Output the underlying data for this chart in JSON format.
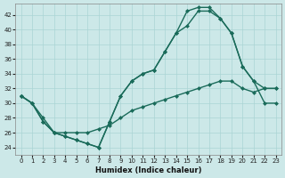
{
  "xlabel": "Humidex (Indice chaleur)",
  "ylabel": "",
  "bg_color": "#cce8e8",
  "line_color": "#1a6b5a",
  "grid_color": "#aad4d4",
  "xlim": [
    -0.5,
    23.5
  ],
  "ylim": [
    23,
    43.5
  ],
  "yticks": [
    24,
    26,
    28,
    30,
    32,
    34,
    36,
    38,
    40,
    42
  ],
  "xticks": [
    0,
    1,
    2,
    3,
    4,
    5,
    6,
    7,
    8,
    9,
    10,
    11,
    12,
    13,
    14,
    15,
    16,
    17,
    18,
    19,
    20,
    21,
    22,
    23
  ],
  "line1_x": [
    0,
    1,
    2,
    3,
    4,
    5,
    6,
    7,
    8,
    9,
    10,
    11,
    12,
    13,
    14,
    15,
    16,
    17,
    18,
    19,
    20,
    21,
    22,
    23
  ],
  "line1_y": [
    31,
    30,
    27.5,
    26,
    25.5,
    25,
    24.5,
    24,
    27.5,
    31,
    33,
    34,
    34.5,
    37,
    39.5,
    40.5,
    42.5,
    42.5,
    41.5,
    39.5,
    35,
    33,
    30,
    30
  ],
  "line2_x": [
    0,
    1,
    2,
    3,
    4,
    5,
    6,
    7,
    8,
    9,
    10,
    11,
    12,
    13,
    14,
    15,
    16,
    17,
    18,
    19,
    20,
    21,
    22,
    23
  ],
  "line2_y": [
    31,
    30,
    27.5,
    26,
    25.5,
    25,
    24.5,
    24,
    27.5,
    31,
    33,
    34,
    34.5,
    37,
    39.5,
    42.5,
    43,
    43,
    41.5,
    39.5,
    35,
    33,
    32,
    32
  ],
  "line3_x": [
    0,
    1,
    2,
    3,
    4,
    5,
    6,
    7,
    8,
    9,
    10,
    11,
    12,
    13,
    14,
    15,
    16,
    17,
    18,
    19,
    20,
    21,
    22,
    23
  ],
  "line3_y": [
    31,
    30,
    28,
    26,
    26,
    26,
    26,
    26.5,
    27,
    28,
    29,
    29.5,
    30,
    30.5,
    31,
    31.5,
    32,
    32.5,
    33,
    33,
    32,
    31.5,
    32,
    32
  ]
}
